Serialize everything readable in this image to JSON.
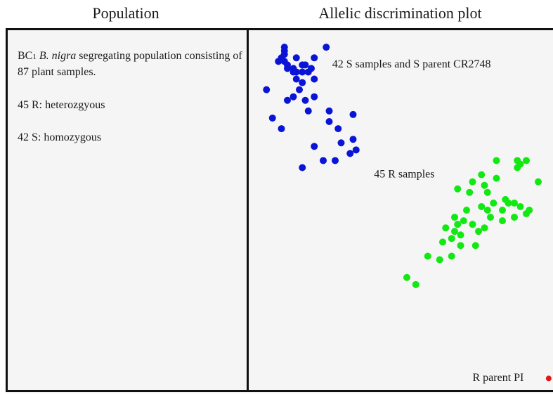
{
  "header": {
    "left_title": "Population",
    "right_title": "Allelic discrimination plot"
  },
  "population": {
    "line1_prefix": "BC",
    "line1_sub": "1",
    "line1_species": "B. nigra",
    "line1_rest": " segregating population consisting of 87 plant samples.",
    "r_text": "45 R: heterozgyous",
    "s_text": "42 S: homozygous"
  },
  "colors": {
    "s_group": "#0a14d6",
    "r_group": "#12e812",
    "r_parent": "#e01818"
  },
  "chart_data": {
    "type": "scatter",
    "title": "Allelic discrimination plot",
    "xlabel": "",
    "ylabel": "",
    "xlim": [
      0,
      100
    ],
    "ylim": [
      0,
      100
    ],
    "grid": false,
    "legend": "none",
    "annotations": [
      {
        "text": "42 S samples and S parent CR2748",
        "x": 27,
        "y": 91
      },
      {
        "text": "45 R samples",
        "x": 41,
        "y": 60
      },
      {
        "text": "R parent PI",
        "x": 74,
        "y": 2.5
      }
    ],
    "series": [
      {
        "name": "42 S samples and S parent CR2748",
        "color": "#0a14d6",
        "x": [
          11,
          11,
          11,
          10,
          11,
          9,
          12,
          12,
          14,
          14,
          15,
          17,
          17,
          18,
          20,
          19,
          25,
          15,
          21,
          15,
          17,
          21,
          16,
          5,
          14,
          21,
          12,
          18,
          19,
          26,
          34,
          7,
          10,
          26,
          29,
          21,
          30,
          34,
          35,
          33,
          17,
          24,
          28
        ],
        "y": [
          96,
          95,
          94,
          93,
          92,
          92,
          91,
          90,
          90,
          89,
          89,
          89,
          91,
          91,
          90,
          89,
          96,
          93,
          93,
          87,
          86,
          87,
          84,
          84,
          82,
          82,
          81,
          81,
          78,
          78,
          77,
          76,
          73,
          75,
          73,
          68,
          69,
          70,
          67,
          66,
          62,
          64,
          64
        ]
      },
      {
        "name": "45 R samples",
        "color": "#12e812",
        "x": [
          89,
          90,
          92,
          89,
          82,
          77,
          82,
          96,
          74,
          78,
          73,
          69,
          79,
          81,
          85,
          86,
          88,
          90,
          84,
          79,
          77,
          72,
          80,
          84,
          88,
          92,
          93,
          68,
          69,
          71,
          74,
          78,
          76,
          65,
          68,
          70,
          64,
          67,
          70,
          75,
          59,
          67,
          63,
          52,
          55
        ],
        "y": [
          64,
          63,
          64,
          62,
          64,
          60,
          59,
          58,
          58,
          57,
          55,
          56,
          55,
          52,
          53,
          52,
          52,
          51,
          50,
          50,
          51,
          50,
          48,
          47,
          48,
          49,
          50,
          48,
          46,
          47,
          46,
          45,
          44,
          45,
          44,
          43,
          41,
          42,
          40,
          40,
          37,
          37,
          36,
          31,
          29
        ]
      },
      {
        "name": "R parent PI",
        "color": "#e01818",
        "x": [
          99.5
        ],
        "y": [
          2.5
        ]
      }
    ]
  }
}
